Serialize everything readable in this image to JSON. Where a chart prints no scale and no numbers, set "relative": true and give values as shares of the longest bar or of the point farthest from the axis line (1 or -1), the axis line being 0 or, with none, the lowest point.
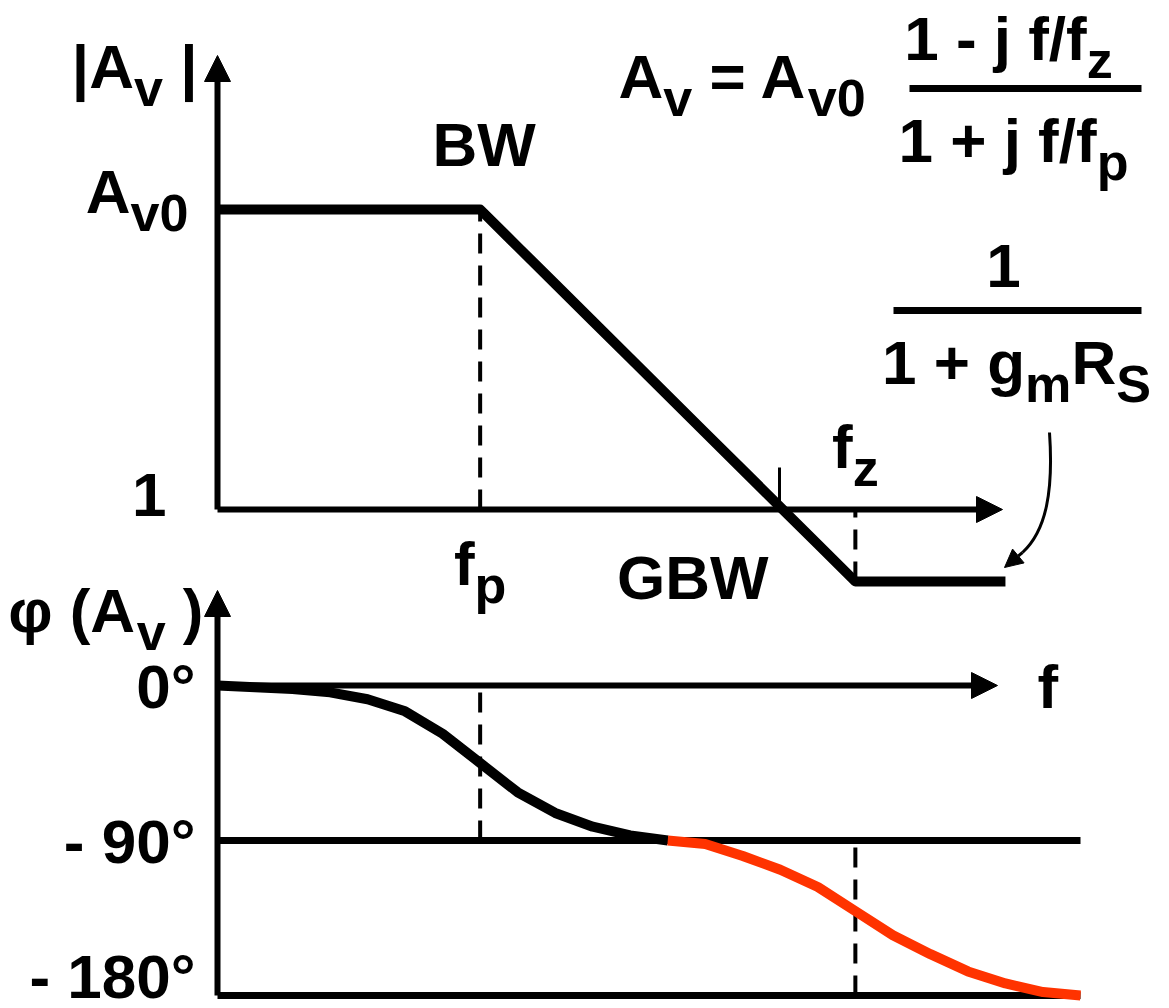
{
  "chart_data": [
    {
      "type": "line",
      "relative": true,
      "ylabel": "|A$_{v}$ |",
      "categories": [
        null,
        null,
        null,
        null,
        null,
        null,
        null,
        "f$_{p}$",
        null,
        null,
        null,
        null,
        null,
        null,
        null,
        null,
        null,
        "f$_{z}$",
        null,
        null,
        null,
        null,
        null,
        null
      ],
      "grid": false,
      "line_style": "solid",
      "series": [
        {
          "color": "#000000",
          "values": [
            1,
            1,
            1,
            1,
            1,
            1,
            1,
            1,
            0.876,
            0.752,
            0.628,
            0.504,
            0.38,
            0.256,
            0.132,
            0.008,
            -0.116,
            -0.24,
            -0.24,
            -0.24,
            -0.24,
            -0.24,
            null,
            null
          ]
        }
      ],
      "ref_lines": [
        {
          "axis": "x",
          "value": "f$_{p}$",
          "line_style": "dashed"
        },
        {
          "axis": "x",
          "value": "f$_{z}$",
          "line_style": "dashed"
        }
      ],
      "annotations": [
        "A$_{v0}$",
        "1",
        {
          "text": "BW",
          "x": "f$_{p}$",
          "y": 1
        },
        "GBW",
        "A$_{v}$ = A$_{v0}$",
        "1 - j f/f$_{z}$",
        "1 + j f/f$_{p}$",
        "1",
        "1 + g$_{m}$R$_{S}$"
      ]
    },
    {
      "type": "line",
      "ylabel": "φ (A$_{v}$ )",
      "xlabel": "f",
      "categories": [
        null,
        null,
        null,
        null,
        null,
        null,
        null,
        null,
        null,
        null,
        null,
        null,
        null,
        null,
        null,
        null,
        null,
        null,
        null,
        null,
        null,
        null,
        null,
        null
      ],
      "ylim": [
        -180,
        0
      ],
      "yticks": [
        {
          "value": 0,
          "label": "0°"
        },
        {
          "value": -90,
          "label": "- 90°"
        },
        {
          "value": -180,
          "label": "- 180°"
        }
      ],
      "grid": false,
      "line_style": "solid",
      "series": [
        {
          "color": "#000000",
          "values": [
            0,
            -1,
            -2,
            -4,
            -8,
            -15,
            -28,
            -45,
            -62,
            -74,
            -82,
            -87,
            -90,
            null,
            null,
            null,
            null,
            null,
            null,
            null,
            null,
            null,
            null,
            null
          ]
        },
        {
          "color": "#ff3300",
          "values": [
            null,
            null,
            null,
            null,
            null,
            null,
            null,
            null,
            null,
            null,
            null,
            null,
            -90,
            -92,
            -99,
            -107,
            -117,
            -131,
            -145,
            -156,
            -166,
            -173,
            -178,
            -180
          ]
        }
      ],
      "ref_lines": [
        {
          "axis": "y",
          "value": -90
        }
      ]
    }
  ]
}
